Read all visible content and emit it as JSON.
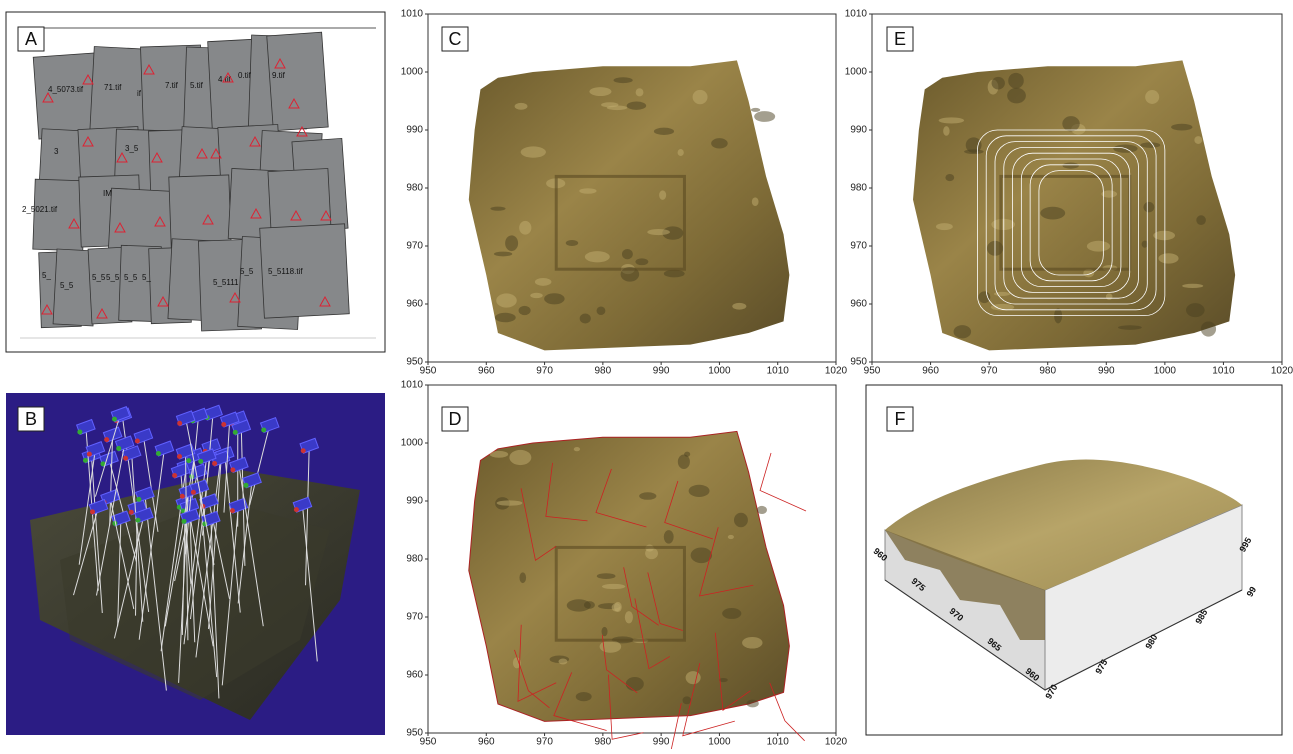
{
  "panels": [
    {
      "label": "A",
      "tile_labels": [
        "4_5073.tif",
        "71.tif",
        "if",
        "7.tif",
        "5.tif",
        "4.tif",
        "0.tif",
        "9.tif",
        "3",
        "3_5",
        "2_5021.tif",
        "IM",
        "5_",
        "5_5",
        "5_5",
        "5_5",
        "5_5",
        "5_",
        "5_5111",
        "5_5",
        "5_5118.tif"
      ]
    },
    {
      "label": "B"
    },
    {
      "label": "C",
      "xticks": [
        950,
        960,
        970,
        980,
        990,
        1000,
        1010,
        1020
      ],
      "yticks": [
        950,
        960,
        970,
        980,
        990,
        1000,
        1010
      ]
    },
    {
      "label": "D",
      "xticks": [
        950,
        960,
        970,
        980,
        990,
        1000,
        1010,
        1020
      ],
      "yticks": [
        950,
        960,
        970,
        980,
        990,
        1000,
        1010
      ]
    },
    {
      "label": "E",
      "xticks": [
        950,
        960,
        970,
        980,
        990,
        1000,
        1010,
        1020
      ],
      "yticks": [
        950,
        960,
        970,
        980,
        990,
        1000,
        1010
      ]
    },
    {
      "label": "F",
      "left_axis": [
        "960",
        "975",
        "970",
        "965",
        "960"
      ],
      "front_axis": [
        "970",
        "975",
        "980",
        "985",
        "99"
      ],
      "side_axis": [
        "995"
      ]
    }
  ]
}
